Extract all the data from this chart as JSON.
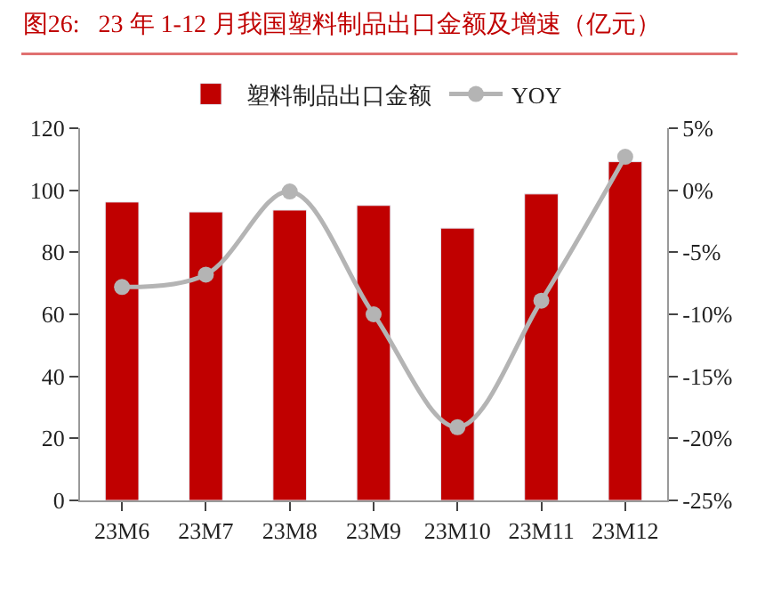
{
  "chart_data": {
    "type": "bar",
    "title": "图26:   23 年 1-12 月我国塑料制品出口金额及增速（亿元）",
    "categories": [
      "23M6",
      "23M7",
      "23M8",
      "23M9",
      "23M10",
      "23M11",
      "23M12"
    ],
    "series": [
      {
        "name": "塑料制品出口金额",
        "color": "#c00000",
        "values": [
          96.2,
          93.0,
          93.6,
          95.1,
          87.8,
          98.8,
          109.2
        ]
      },
      {
        "name": "YOY",
        "type": "line",
        "axis": "y2",
        "color": "#b4b4b4",
        "marker": "circle",
        "values": [
          -7.8,
          -6.8,
          -0.1,
          -10.0,
          -19.1,
          -8.9,
          2.7
        ]
      }
    ],
    "ylim": [
      0,
      120
    ],
    "yticks": [
      0,
      20,
      40,
      60,
      80,
      100,
      120
    ],
    "y2lim": [
      -25,
      5
    ],
    "y2ticks": [
      {
        "value": -25,
        "label": "-25%"
      },
      {
        "value": -20,
        "label": "-20%"
      },
      {
        "value": -15,
        "label": "-15%"
      },
      {
        "value": -10,
        "label": "-10%"
      },
      {
        "value": -5,
        "label": "-5%"
      },
      {
        "value": 0,
        "label": "0%"
      },
      {
        "value": 5,
        "label": "5%"
      }
    ],
    "legend": "top"
  }
}
